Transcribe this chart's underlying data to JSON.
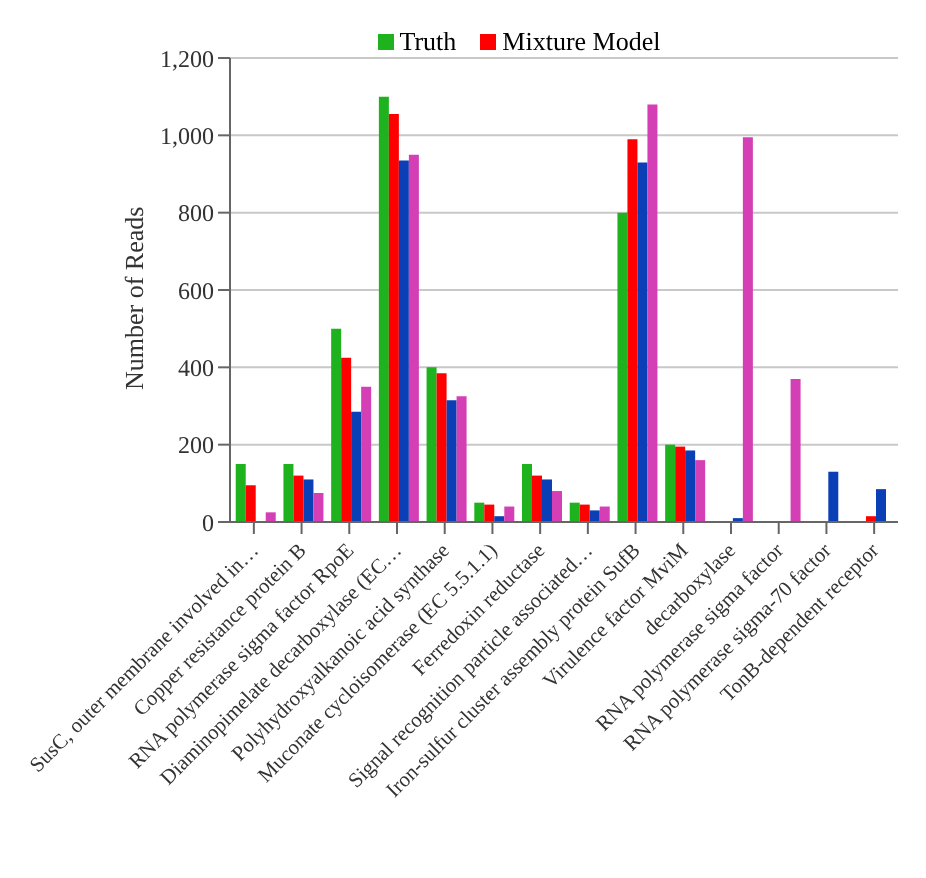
{
  "chart_data": {
    "type": "bar",
    "ylabel": "Number of Reads",
    "categories": [
      "SusC, outer membrane involved in…",
      "Copper resistance protein B",
      "RNA polymerase sigma factor RpoE",
      "Diaminopimelate decarboxylase (EC…",
      "Polyhydroxyalkanoic acid synthase",
      "Muconate cycloisomerase (EC 5.5.1.1)",
      "Ferredoxin reductase",
      "Signal recognition particle associated…",
      "Iron-sulfur cluster assembly protein SufB",
      "Virulence factor MviM",
      "decarboxylase",
      "RNA polymerase sigma factor",
      "RNA polymerase sigma-70 factor",
      "TonB-dependent receptor"
    ],
    "series": [
      {
        "name": "Truth",
        "color": "#1fb21f",
        "values": [
          150,
          150,
          500,
          1100,
          400,
          50,
          150,
          50,
          800,
          200,
          0,
          0,
          0,
          0
        ]
      },
      {
        "name": "Mixture Model",
        "color": "#ff0000",
        "values": [
          95,
          120,
          425,
          1055,
          385,
          45,
          120,
          45,
          990,
          195,
          0,
          0,
          0,
          15
        ]
      },
      {
        "color": "#0b3fb5",
        "values": [
          0,
          110,
          285,
          935,
          315,
          15,
          110,
          30,
          930,
          185,
          10,
          0,
          130,
          85
        ]
      },
      {
        "color": "#d43fb5",
        "values": [
          25,
          75,
          350,
          950,
          325,
          40,
          80,
          40,
          1080,
          160,
          995,
          370,
          0,
          0
        ]
      }
    ],
    "ylim": [
      0,
      1200
    ],
    "yticks": [
      {
        "value": 0,
        "label": "0"
      },
      {
        "value": 200,
        "label": "200"
      },
      {
        "value": 400,
        "label": "400"
      },
      {
        "value": 600,
        "label": "600"
      },
      {
        "value": 800,
        "label": "800"
      },
      {
        "value": 1000,
        "label": "1,000"
      },
      {
        "value": 1200,
        "label": "1,200"
      }
    ],
    "grid": "y",
    "legend": "top"
  }
}
